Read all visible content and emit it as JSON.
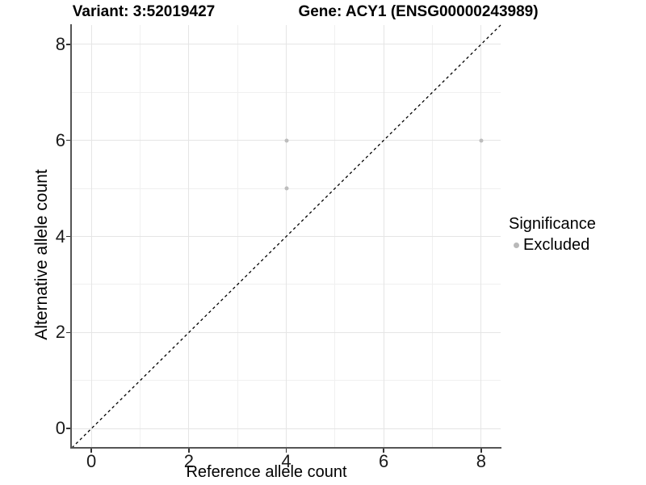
{
  "header": {
    "variant_title": "Variant: 3:52019427",
    "gene_title": "Gene: ACY1 (ENSG00000243989)"
  },
  "chart_data": {
    "type": "scatter",
    "title": "Variant: 3:52019427 — Gene: ACY1 (ENSG00000243989)",
    "xlabel": "Reference allele count",
    "ylabel": "Alternative allele count",
    "xlim": [
      -0.4,
      8.4
    ],
    "ylim": [
      -0.4,
      8.4
    ],
    "x_ticks": [
      0,
      2,
      4,
      6,
      8
    ],
    "y_ticks": [
      0,
      2,
      4,
      6,
      8
    ],
    "x_minor_ticks": [
      1,
      3,
      5,
      7
    ],
    "y_minor_ticks": [
      1,
      3,
      5,
      7
    ],
    "grid": true,
    "series": [
      {
        "name": "Excluded",
        "color": "#bdbdbd",
        "points": [
          [
            4,
            5
          ],
          [
            4,
            6
          ],
          [
            8,
            6
          ]
        ]
      }
    ],
    "reference_line": {
      "type": "identity",
      "style": "dashed",
      "color": "#000000"
    },
    "legend": {
      "title": "Significance",
      "position": "right",
      "items": [
        {
          "label": "Excluded",
          "color": "#b9b9b9"
        }
      ]
    }
  },
  "colors": {
    "background": "#ffffff",
    "grid_major": "#e5e5e5",
    "grid_minor": "#f0f0f0",
    "axis_line": "#555555",
    "tick_mark": "#333333",
    "tick_text": "#1a1a1a",
    "point": "#bdbdbd"
  }
}
